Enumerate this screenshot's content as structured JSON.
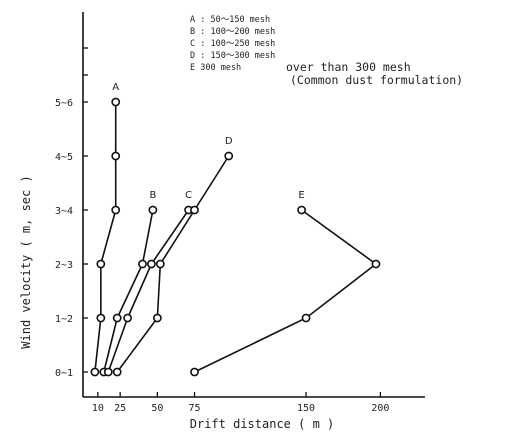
{
  "chart_data": {
    "type": "line",
    "title": "",
    "xlabel": "Drift distance",
    "xlabel_unit": "( m )",
    "ylabel": "Wind velocity",
    "ylabel_unit": "( m, sec )",
    "xlim": [
      0,
      230
    ],
    "x_ticks": [
      10,
      25,
      50,
      75,
      150,
      200
    ],
    "y_categories": [
      "0~1",
      "1~2",
      "2~3",
      "3~4",
      "4~5",
      "5~6"
    ],
    "legend": [
      {
        "key": "A",
        "text": "A : 50～150 mesh"
      },
      {
        "key": "B",
        "text": "B : 100～200 mesh"
      },
      {
        "key": "C",
        "text": "C : 100～250 mesh"
      },
      {
        "key": "D",
        "text": "D : 150～300 mesh"
      },
      {
        "key": "E",
        "text": "E  300 mesh",
        "extra": "over than 300 mesh",
        "extra2": "(Common dust formulation)"
      }
    ],
    "series": [
      {
        "name": "A",
        "points": [
          [
            8,
            "0~1"
          ],
          [
            12,
            "1~2"
          ],
          [
            12,
            "2~3"
          ],
          [
            22,
            "3~4"
          ],
          [
            22,
            "4~5"
          ],
          [
            22,
            "5~6"
          ]
        ]
      },
      {
        "name": "B",
        "points": [
          [
            14,
            "0~1"
          ],
          [
            23,
            "1~2"
          ],
          [
            40,
            "2~3"
          ],
          [
            47,
            "3~4"
          ]
        ]
      },
      {
        "name": "C",
        "points": [
          [
            17,
            "0~1"
          ],
          [
            30,
            "1~2"
          ],
          [
            46,
            "2~3"
          ],
          [
            71,
            "3~4"
          ]
        ]
      },
      {
        "name": "D",
        "points": [
          [
            23,
            "0~1"
          ],
          [
            50,
            "1~2"
          ],
          [
            52,
            "2~3"
          ],
          [
            75,
            "3~4"
          ],
          [
            98,
            "4~5"
          ]
        ]
      },
      {
        "name": "E",
        "points": [
          [
            75,
            "0~1"
          ],
          [
            150,
            "1~2"
          ],
          [
            197,
            "2~3"
          ],
          [
            147,
            "3~4"
          ]
        ]
      }
    ],
    "grid": false
  }
}
